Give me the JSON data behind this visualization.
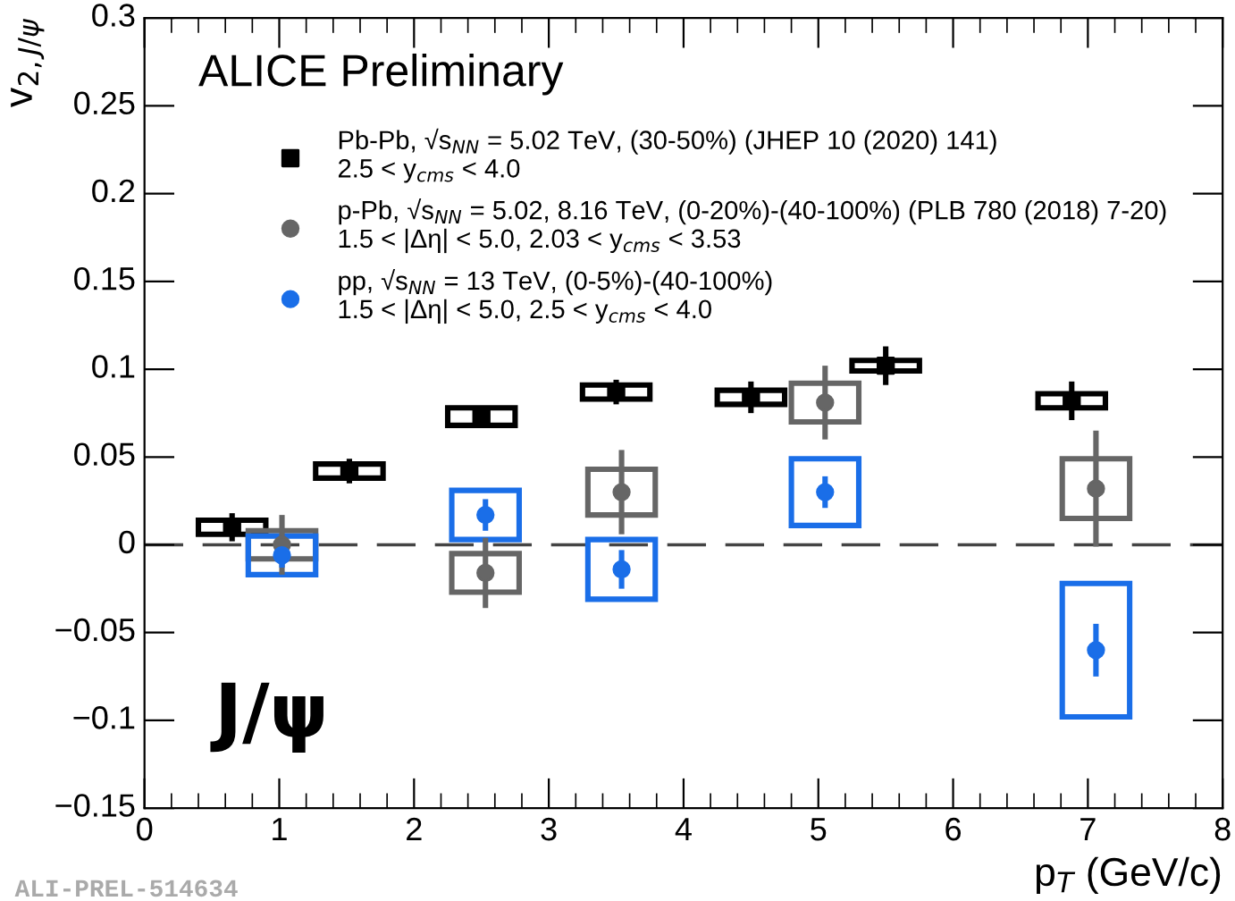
{
  "chart_data": {
    "type": "scatter",
    "xlabel": "p$_{T}$ (GeV/c)",
    "ylabel": "v$_{2,J/ψ}$",
    "xlim": [
      0,
      8
    ],
    "xticks": [
      0,
      1,
      2,
      3,
      4,
      5,
      6,
      7,
      8
    ],
    "ylim": [
      -0.15,
      0.3
    ],
    "yticks": [
      {
        "value": -0.15,
        "label": "−0.15"
      },
      {
        "value": -0.1,
        "label": "−0.1"
      },
      {
        "value": -0.05,
        "label": "−0.05"
      },
      0,
      0.05,
      0.1,
      0.15,
      0.2,
      0.25,
      0.3
    ],
    "grid": false,
    "legend": "top",
    "annotations": [
      "ALICE Preliminary",
      "J/ψ",
      "ALI-PREL-514634"
    ],
    "ref_lines": [
      {
        "axis": "y",
        "value": 0,
        "line_style": "dashed",
        "color": "#444444"
      }
    ],
    "series": [
      {
        "type": "bar",
        "color": "#000000",
        "x": [
          0.65,
          1.52,
          2.5,
          3.5,
          4.5,
          5.5,
          6.88
        ],
        "base": [
          0.006,
          0.038,
          0.068,
          0.083,
          0.08,
          0.099,
          0.078
        ],
        "values": [
          0.008,
          0.008,
          0.01,
          0.008,
          0.008,
          0.006,
          0.008
        ]
      },
      {
        "type": "bar",
        "color": "#666666",
        "x": [
          1.02,
          2.53,
          3.54,
          5.05,
          7.06
        ],
        "base": [
          -0.008,
          -0.027,
          0.017,
          0.07,
          0.015
        ],
        "values": [
          0.016,
          0.022,
          0.026,
          0.022,
          0.034
        ]
      },
      {
        "type": "bar",
        "color": "#1a6ee8",
        "x": [
          1.02,
          2.53,
          3.54,
          5.05,
          7.06
        ],
        "base": [
          -0.017,
          0.003,
          -0.031,
          0.011,
          -0.098
        ],
        "values": [
          0.022,
          0.028,
          0.034,
          0.038,
          0.076
        ]
      },
      {
        "name": "Pb-Pb, √s$_{NN}$ = 5.02 TeV, (30-50%) (JHEP 10 (2020) 141)\n2.5 < y$_{cms}$ < 4.0",
        "color": "#000000",
        "marker": "square",
        "x": [
          0.65,
          1.52,
          2.5,
          3.5,
          4.5,
          5.5,
          6.88
        ],
        "values": [
          0.01,
          0.042,
          0.073,
          0.087,
          0.084,
          0.102,
          0.082
        ],
        "errors": [
          0.008,
          0.007,
          0.005,
          0.007,
          0.009,
          0.011,
          0.011
        ]
      },
      {
        "name": "p-Pb, √s$_{NN}$ = 5.02, 8.16 TeV, (0-20%)-(40-100%) (PLB 780 (2018) 7-20)\n1.5 < |Δη| < 5.0, 2.03 < y$_{cms}$ < 3.53",
        "color": "#666666",
        "marker": "circle",
        "x": [
          1.02,
          2.53,
          3.54,
          5.05,
          7.06
        ],
        "values": [
          0.0,
          -0.016,
          0.03,
          0.081,
          0.032
        ],
        "errors": [
          0.017,
          0.02,
          0.024,
          0.021,
          0.033
        ]
      },
      {
        "name": "pp, √s$_{NN}$ = 13 TeV, (0-5%)-(40-100%)\n1.5 < |Δη| < 5.0, 2.5 < y$_{cms}$ < 4.0",
        "color": "#1a6ee8",
        "marker": "circle",
        "x": [
          1.02,
          2.53,
          3.54,
          5.05,
          7.06
        ],
        "values": [
          -0.006,
          0.017,
          -0.014,
          0.03,
          -0.06
        ],
        "errors": [
          0.007,
          0.009,
          0.011,
          0.009,
          0.015
        ]
      }
    ]
  }
}
